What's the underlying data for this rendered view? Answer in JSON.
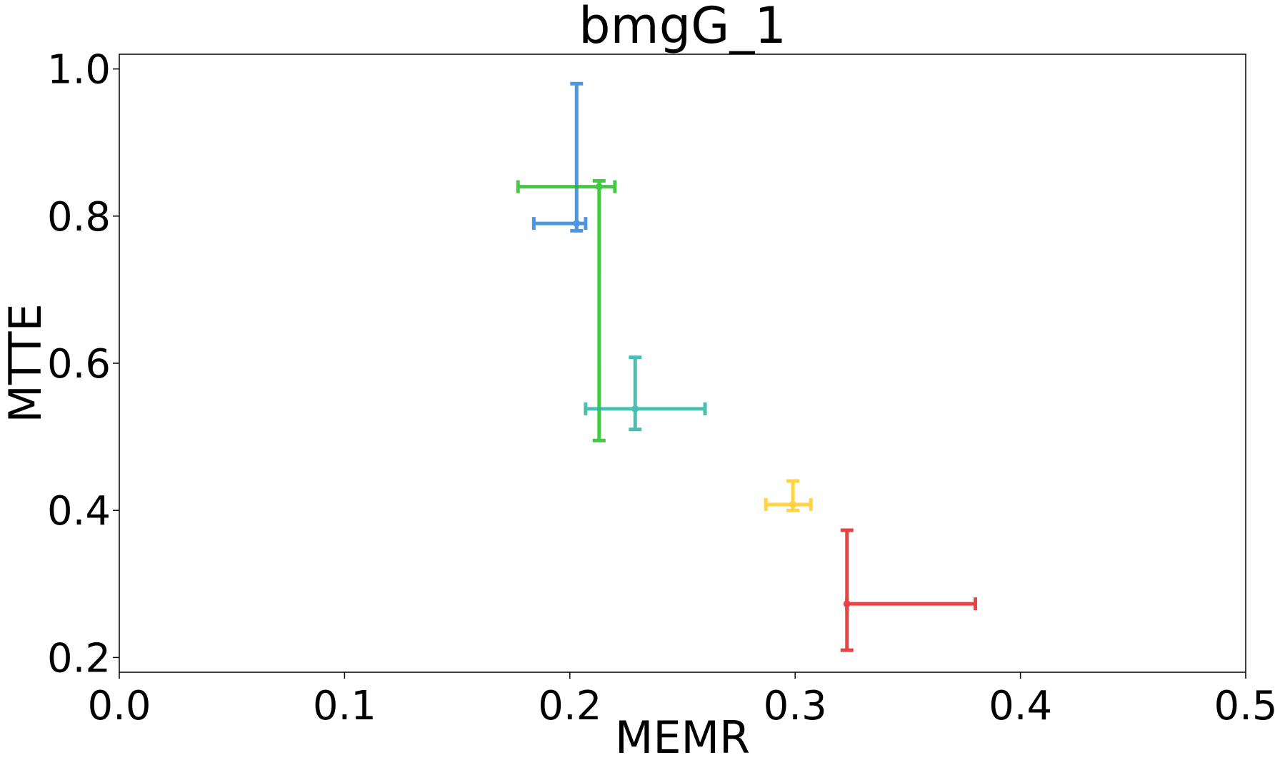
{
  "chart_data": {
    "type": "scatter",
    "title": "bmgG_1",
    "xlabel": "MEMR",
    "ylabel": "MTTE",
    "xlim": [
      0.0,
      0.5
    ],
    "ylim": [
      0.18,
      1.02
    ],
    "x_ticks": [
      0.0,
      0.1,
      0.2,
      0.3,
      0.4,
      0.5
    ],
    "x_tick_labels": [
      "0.0",
      "0.1",
      "0.2",
      "0.3",
      "0.4",
      "0.5"
    ],
    "y_ticks": [
      0.2,
      0.4,
      0.6,
      0.8,
      1.0
    ],
    "y_tick_labels": [
      "0.2",
      "0.4",
      "0.6",
      "0.8",
      "1.0"
    ],
    "grid": false,
    "legend": null,
    "points": [
      {
        "color": "#2b86e0",
        "x": 0.203,
        "y": 0.79,
        "x_err": [
          0.184,
          0.207
        ],
        "y_err": [
          0.78,
          0.98
        ]
      },
      {
        "color": "#22c222",
        "x": 0.213,
        "y": 0.84,
        "x_err": [
          0.177,
          0.22
        ],
        "y_err": [
          0.495,
          0.848
        ]
      },
      {
        "color": "#2ab5a5",
        "x": 0.229,
        "y": 0.538,
        "x_err": [
          0.207,
          0.26
        ],
        "y_err": [
          0.51,
          0.608
        ]
      },
      {
        "color": "#ffcc22",
        "x": 0.299,
        "y": 0.408,
        "x_err": [
          0.287,
          0.307
        ],
        "y_err": [
          0.4,
          0.44
        ]
      },
      {
        "color": "#e62222",
        "x": 0.323,
        "y": 0.273,
        "x_err": [
          0.323,
          0.38
        ],
        "y_err": [
          0.21,
          0.373
        ]
      }
    ]
  }
}
